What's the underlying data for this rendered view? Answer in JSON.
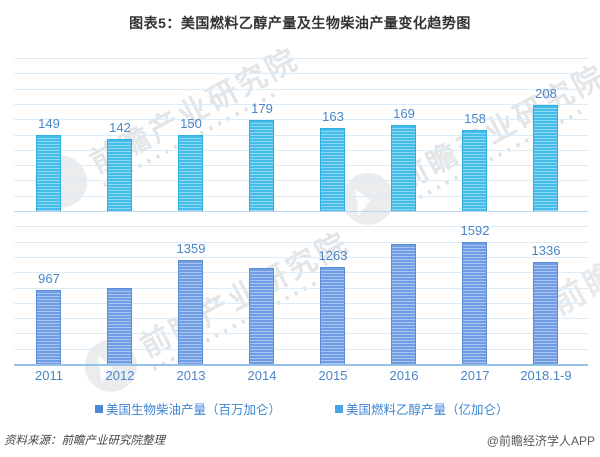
{
  "page": {
    "title": "图表5：美国燃料乙醇产量及生物柴油产量变化趋势图",
    "source_note": "资料来源：前瞻产业研究院整理",
    "brand_credit": "@前瞻经济学人APP",
    "watermark_text": "前瞻产业研究院",
    "watermark_text_partial": "前瞻"
  },
  "legend": [
    {
      "label": "■美国生物柴油产量（百万加仑）",
      "marker_label": "■",
      "text": "美国生物柴油产量（百万加仑）",
      "marker_color": "#4c8bd2"
    },
    {
      "label": "■美国燃料乙醇产量（亿加仑）",
      "marker_label": "■",
      "text": "美国燃料乙醇产量（亿加仑）",
      "marker_color": "#48a7e0"
    }
  ],
  "chart_data": {
    "type": "bar",
    "title": "图表5：美国燃料乙醇产量及生物柴油产量变化趋势图",
    "categories": [
      "2011",
      "2012",
      "2013",
      "2014",
      "2015",
      "2016",
      "2017",
      "2018.1-9"
    ],
    "series": [
      {
        "name": "美国燃料乙醇产量（亿加仑）",
        "panel": "top",
        "values": [
          149,
          142,
          150,
          179,
          163,
          169,
          158,
          208
        ],
        "value_labels": [
          "149",
          "142",
          "150",
          "179",
          "163",
          "169",
          "158",
          "208"
        ],
        "base_color": "#45bde8",
        "stripe_color": "#8ed9f3",
        "border_color": "#2eaede",
        "label_color": "#4a86c8"
      },
      {
        "name": "美国生物柴油产量（百万加仑）",
        "panel": "bottom",
        "values": [
          967,
          990,
          1359,
          1250,
          1263,
          1565,
          1592,
          1336
        ],
        "value_labels": [
          "967",
          "",
          "1359",
          "",
          "1263",
          "",
          "1592",
          "1336"
        ],
        "base_color": "#6f9ce2",
        "stripe_color": "#aac6f0",
        "border_color": "#5e8dd8",
        "label_color": "#4a86c8"
      }
    ],
    "axes": {
      "x_tick_labels": [
        "2011",
        "2012",
        "2013",
        "2014",
        "2015",
        "2016",
        "2017",
        "2018.1-9"
      ],
      "top_panel_ylim": [
        0,
        300
      ],
      "bottom_panel_ylim": [
        0,
        2000
      ],
      "y_tick_labels_visible": false,
      "gridlines": true,
      "gridline_intervals": 20
    },
    "legend_position": "bottom",
    "notes": "Split-panel column chart: cyan striped bars (fuel ethanol) in upper band, blue striped bars (biodiesel) in lower band; labels for 2012, 2014, 2016 biodiesel bars are not printed (values estimated from bar heights)."
  }
}
